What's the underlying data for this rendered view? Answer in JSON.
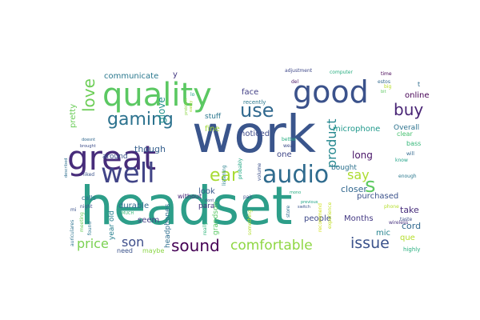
{
  "words": [
    {
      "text": "headset",
      "color": "#2d9e89"
    },
    {
      "text": "work",
      "color": "#3a558c"
    },
    {
      "text": "great",
      "color": "#472c7a"
    },
    {
      "text": "quality",
      "color": "#5bc862"
    },
    {
      "text": "good",
      "color": "#3b528b"
    },
    {
      "text": "well",
      "color": "#414487"
    },
    {
      "text": "audio",
      "color": "#2f6b8e"
    },
    {
      "text": "gaming",
      "color": "#2c728e"
    },
    {
      "text": "use",
      "color": "#30688e"
    },
    {
      "text": "ear",
      "color": "#a8db34"
    },
    {
      "text": "sound",
      "color": "#440154"
    },
    {
      "text": "comfortable",
      "color": "#8fd744"
    },
    {
      "text": "issue",
      "color": "#3b528b"
    },
    {
      "text": "price",
      "color": "#7ad151"
    },
    {
      "text": "son",
      "color": "#3d4d8a"
    },
    {
      "text": "love",
      "color": "#6ece58"
    },
    {
      "text": "buy",
      "color": "#482475"
    },
    {
      "text": "product",
      "color": "#24878e"
    },
    {
      "text": "say",
      "color": "#addc30"
    },
    {
      "text": "s",
      "color": "#5ec962"
    },
    {
      "text": "glove",
      "color": "#21918c"
    },
    {
      "text": "though",
      "color": "#355f8d"
    },
    {
      "text": "long",
      "color": "#481467"
    },
    {
      "text": "purchased",
      "color": "#3b528b"
    },
    {
      "text": "take",
      "color": "#472d7b"
    },
    {
      "text": "cord",
      "color": "#31688e"
    },
    {
      "text": "que",
      "color": "#b5de2b"
    },
    {
      "text": "mic",
      "color": "#25838e"
    },
    {
      "text": "Months",
      "color": "#443983"
    },
    {
      "text": "people",
      "color": "#3e4989"
    },
    {
      "text": "online",
      "color": "#440154"
    },
    {
      "text": "communicate",
      "color": "#2a788e"
    },
    {
      "text": "pretty",
      "color": "#6ccd5a"
    },
    {
      "text": "microphone",
      "color": "#1f988b"
    },
    {
      "text": "Overall",
      "color": "#2c728e"
    },
    {
      "text": "clear",
      "color": "#46c06f"
    },
    {
      "text": "fine",
      "color": "#a0da39"
    },
    {
      "text": "noticed",
      "color": "#3e4a89"
    },
    {
      "text": "stuff",
      "color": "#2a768e"
    },
    {
      "text": "face",
      "color": "#424086"
    },
    {
      "text": "around",
      "color": "#3b528b"
    },
    {
      "text": "durable",
      "color": "#306a8e"
    },
    {
      "text": "look",
      "color": "#38588c"
    },
    {
      "text": "closer",
      "color": "#31678e"
    },
    {
      "text": "bought",
      "color": "#2c718e"
    },
    {
      "text": "one",
      "color": "#3f4788"
    },
    {
      "text": "para",
      "color": "#45337d"
    },
    {
      "text": "seem",
      "color": "#433e85"
    },
    {
      "text": "year old",
      "color": "#277f8e"
    },
    {
      "text": "headphones",
      "color": "#2e6e8e"
    },
    {
      "text": "grandson",
      "color": "#5ac864"
    },
    {
      "text": "maybe",
      "color": "#8bd646"
    },
    {
      "text": "need",
      "color": "#3b528b"
    },
    {
      "text": "calls",
      "color": "#2e6f8e"
    },
    {
      "text": "without",
      "color": "#482878"
    },
    {
      "text": "bass",
      "color": "#35b779"
    },
    {
      "text": "highly",
      "color": "#29af7f"
    },
    {
      "text": "recently",
      "color": "#2a788e"
    },
    {
      "text": "adjustment",
      "color": "#3f4889"
    },
    {
      "text": "computer",
      "color": "#28ae80"
    },
    {
      "text": "time",
      "color": "#440154"
    },
    {
      "text": "estos",
      "color": "#31688e"
    },
    {
      "text": "big",
      "color": "#b8de29"
    },
    {
      "text": "wear",
      "color": "#3d4e8a"
    },
    {
      "text": "better",
      "color": "#26ad81"
    },
    {
      "text": "mono",
      "color": "#27ad81"
    },
    {
      "text": "switch",
      "color": "#3a548c"
    },
    {
      "text": "previous",
      "color": "#20a386"
    },
    {
      "text": "listening",
      "color": "#27808e"
    },
    {
      "text": "really",
      "color": "#31b57b"
    },
    {
      "text": "probably",
      "color": "#22a884"
    },
    {
      "text": "volume",
      "color": "#3c4f8a"
    },
    {
      "text": "pair",
      "color": "#3b528b"
    },
    {
      "text": "store",
      "color": "#2f6c8e"
    },
    {
      "text": "something",
      "color": "#b0dd2f"
    },
    {
      "text": "wireless",
      "color": "#46307e"
    },
    {
      "text": "taste",
      "color": "#3d4d8a"
    },
    {
      "text": "phone",
      "color": "#b4de2c"
    },
    {
      "text": "enough",
      "color": "#2a788e"
    },
    {
      "text": "know",
      "color": "#1fa287"
    },
    {
      "text": "recommend",
      "color": "#d2e21b"
    },
    {
      "text": "experience",
      "color": "#c2df23"
    },
    {
      "text": "will",
      "color": "#31688e"
    },
    {
      "text": "found",
      "color": "#2a768e"
    },
    {
      "text": "meeting",
      "color": "#6ccd5a"
    },
    {
      "text": "auriculares",
      "color": "#2c738e"
    },
    {
      "text": "night",
      "color": "#3b528b"
    },
    {
      "text": "described",
      "color": "#2e6e8e"
    },
    {
      "text": "liked",
      "color": "#3a538b"
    },
    {
      "text": "dont",
      "color": "#3b528b"
    },
    {
      "text": "MUCH",
      "color": "#38b977"
    },
    {
      "text": "doesnt",
      "color": "#31688e"
    },
    {
      "text": "brought",
      "color": "#3d4e8a"
    },
    {
      "text": "problem",
      "color": "#8bd646"
    },
    {
      "text": "easily",
      "color": "#a8db34"
    },
    {
      "text": "bit",
      "color": "#5ec962"
    },
    {
      "text": "lo",
      "color": "#1fa187"
    },
    {
      "text": "del",
      "color": "#481467"
    },
    {
      "text": "mi",
      "color": "#3b528b"
    },
    {
      "text": "y",
      "color": "#443983"
    },
    {
      "text": "t",
      "color": "#2f6c8e"
    }
  ]
}
